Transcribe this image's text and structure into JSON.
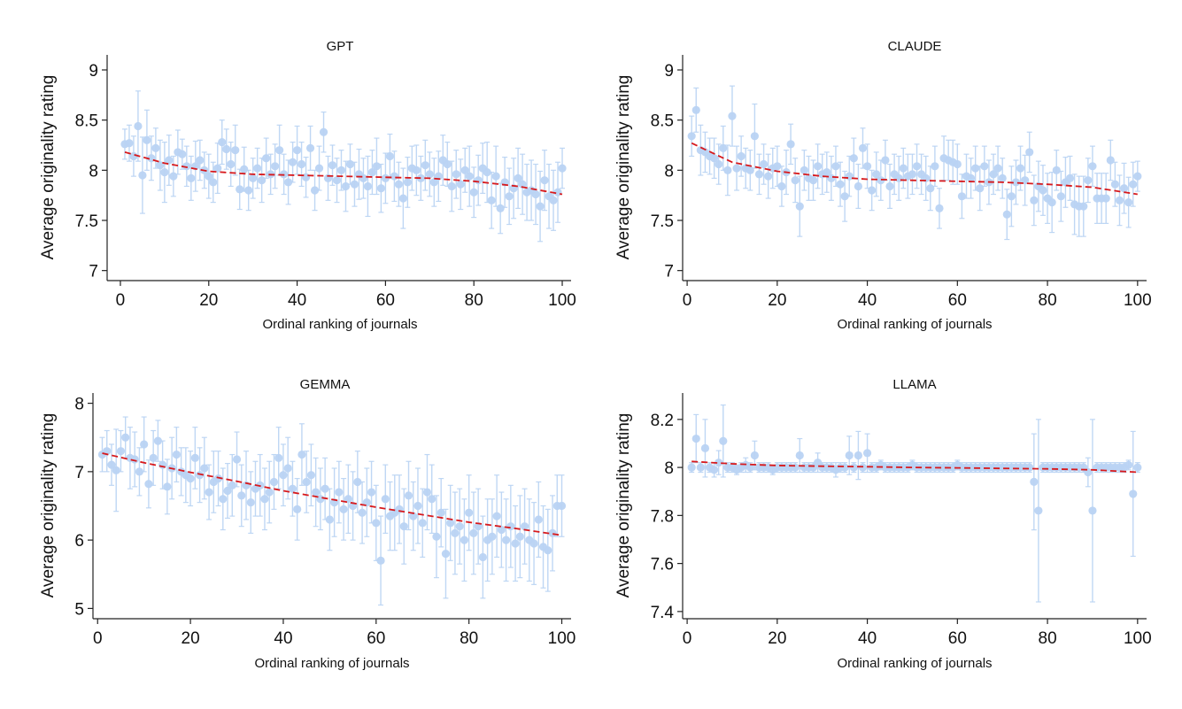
{
  "figure": {
    "x_label": "Ordinal ranking of journals",
    "y_label": "Average originality rating"
  },
  "colors": {
    "points": "#b9d3f3",
    "fit_line": "#d7191c",
    "axis": "#222222"
  },
  "chart_data": [
    {
      "type": "scatter",
      "title": "GPT",
      "xlabel": "Ordinal ranking of journals",
      "ylabel": "Average originality rating",
      "xlim": [
        -3,
        102
      ],
      "ylim": [
        6.9,
        9.15
      ],
      "x_ticks": [
        "0",
        "20",
        "40",
        "60",
        "80",
        "100"
      ],
      "y_ticks": [
        "7",
        "7.5",
        "8",
        "8.5",
        "9"
      ],
      "x": [
        1,
        2,
        3,
        4,
        5,
        6,
        7,
        8,
        9,
        10,
        11,
        12,
        13,
        14,
        15,
        16,
        17,
        18,
        19,
        20,
        21,
        22,
        23,
        24,
        25,
        26,
        27,
        28,
        29,
        30,
        31,
        32,
        33,
        34,
        35,
        36,
        37,
        38,
        39,
        40,
        41,
        42,
        43,
        44,
        45,
        46,
        47,
        48,
        49,
        50,
        51,
        52,
        53,
        54,
        55,
        56,
        57,
        58,
        59,
        60,
        61,
        62,
        63,
        64,
        65,
        66,
        67,
        68,
        69,
        70,
        71,
        72,
        73,
        74,
        75,
        76,
        77,
        78,
        79,
        80,
        81,
        82,
        83,
        84,
        85,
        86,
        87,
        88,
        89,
        90,
        91,
        92,
        93,
        94,
        95,
        96,
        97,
        98,
        99,
        100
      ],
      "y": [
        8.26,
        8.27,
        8.14,
        8.44,
        7.95,
        8.3,
        8.12,
        8.22,
        8.05,
        7.98,
        8.1,
        7.94,
        8.18,
        8.16,
        8.04,
        7.92,
        8.04,
        8.1,
        8.0,
        7.94,
        7.88,
        8.02,
        8.28,
        8.21,
        8.06,
        8.2,
        7.81,
        8.01,
        7.8,
        7.92,
        8.02,
        7.9,
        8.12,
        7.96,
        8.04,
        8.2,
        7.96,
        7.88,
        8.08,
        8.2,
        8.06,
        7.93,
        8.22,
        7.8,
        8.02,
        8.38,
        7.92,
        8.05,
        7.9,
        8.0,
        7.84,
        8.06,
        7.86,
        7.96,
        7.92,
        7.84,
        7.98,
        8.04,
        7.82,
        7.92,
        8.14,
        7.94,
        7.86,
        7.72,
        7.88,
        8.02,
        8.0,
        7.92,
        8.05,
        7.96,
        7.88,
        7.94,
        8.1,
        8.06,
        7.84,
        7.96,
        7.86,
        8.0,
        7.94,
        7.78,
        7.9,
        8.02,
        7.98,
        7.7,
        7.94,
        7.62,
        7.88,
        7.74,
        7.82,
        7.92,
        7.86,
        7.78,
        7.8,
        7.76,
        7.64,
        7.9,
        7.74,
        7.7,
        7.78,
        8.02
      ],
      "error_half_width": [
        0.15,
        0.18,
        0.2,
        0.35,
        0.38,
        0.3,
        0.22,
        0.2,
        0.25,
        0.3,
        0.25,
        0.2,
        0.22,
        0.15,
        0.2,
        0.22,
        0.25,
        0.2,
        0.18,
        0.22,
        0.2,
        0.25,
        0.22,
        0.2,
        0.22,
        0.25,
        0.2,
        0.22,
        0.2,
        0.2,
        0.2,
        0.22,
        0.2,
        0.2,
        0.22,
        0.25,
        0.2,
        0.22,
        0.2,
        0.24,
        0.22,
        0.2,
        0.22,
        0.2,
        0.22,
        0.2,
        0.22,
        0.2,
        0.22,
        0.2,
        0.25,
        0.2,
        0.22,
        0.25,
        0.2,
        0.3,
        0.22,
        0.28,
        0.24,
        0.25,
        0.22,
        0.25,
        0.22,
        0.3,
        0.25,
        0.22,
        0.25,
        0.22,
        0.25,
        0.22,
        0.24,
        0.25,
        0.25,
        0.22,
        0.25,
        0.24,
        0.25,
        0.22,
        0.3,
        0.25,
        0.25,
        0.25,
        0.3,
        0.28,
        0.3,
        0.25,
        0.25,
        0.28,
        0.3,
        0.3,
        0.3,
        0.28,
        0.3,
        0.3,
        0.35,
        0.3,
        0.32,
        0.3,
        0.3,
        0.2
      ],
      "fit_line": {
        "x": [
          1,
          10,
          20,
          30,
          40,
          50,
          60,
          70,
          80,
          90,
          100
        ],
        "y": [
          8.18,
          8.07,
          7.99,
          7.96,
          7.95,
          7.94,
          7.93,
          7.92,
          7.89,
          7.84,
          7.76
        ]
      }
    },
    {
      "type": "scatter",
      "title": "CLAUDE",
      "xlabel": "Ordinal ranking of journals",
      "ylabel": "Average originality rating",
      "xlim": [
        -1,
        102
      ],
      "ylim": [
        6.9,
        9.15
      ],
      "x_ticks": [
        "0",
        "20",
        "40",
        "60",
        "80",
        "100"
      ],
      "y_ticks": [
        "7",
        "7.5",
        "8",
        "8.5",
        "9"
      ],
      "x": [
        1,
        2,
        3,
        4,
        5,
        6,
        7,
        8,
        9,
        10,
        11,
        12,
        13,
        14,
        15,
        16,
        17,
        18,
        19,
        20,
        21,
        22,
        23,
        24,
        25,
        26,
        27,
        28,
        29,
        30,
        31,
        32,
        33,
        34,
        35,
        36,
        37,
        38,
        39,
        40,
        41,
        42,
        43,
        44,
        45,
        46,
        47,
        48,
        49,
        50,
        51,
        52,
        53,
        54,
        55,
        56,
        57,
        58,
        59,
        60,
        61,
        62,
        63,
        64,
        65,
        66,
        67,
        68,
        69,
        70,
        71,
        72,
        73,
        74,
        75,
        76,
        77,
        78,
        79,
        80,
        81,
        82,
        83,
        84,
        85,
        86,
        87,
        88,
        89,
        90,
        91,
        92,
        93,
        94,
        95,
        96,
        97,
        98,
        99,
        100
      ],
      "y": [
        8.34,
        8.6,
        8.2,
        8.18,
        8.14,
        8.12,
        8.06,
        8.22,
        8.0,
        8.54,
        8.02,
        8.14,
        8.02,
        8.0,
        8.34,
        7.96,
        8.06,
        7.94,
        8.02,
        8.04,
        7.84,
        7.98,
        8.26,
        7.9,
        7.64,
        8.0,
        7.92,
        7.9,
        8.04,
        7.96,
        7.98,
        7.92,
        8.04,
        7.86,
        7.74,
        7.94,
        8.12,
        7.84,
        8.22,
        8.04,
        7.8,
        7.96,
        7.9,
        8.1,
        7.84,
        7.96,
        7.92,
        8.02,
        7.94,
        7.96,
        8.04,
        7.96,
        7.92,
        7.82,
        8.04,
        7.62,
        8.12,
        8.1,
        8.08,
        8.06,
        7.74,
        7.94,
        7.92,
        8.02,
        7.82,
        8.04,
        7.88,
        7.96,
        8.02,
        7.92,
        7.56,
        7.74,
        7.88,
        8.02,
        7.9,
        8.18,
        7.7,
        7.84,
        7.8,
        7.72,
        7.68,
        8.0,
        7.74,
        7.88,
        7.92,
        7.66,
        7.64,
        7.64,
        7.9,
        8.04,
        7.72,
        7.72,
        7.72,
        8.1,
        7.86,
        7.7,
        7.82,
        7.68,
        7.86,
        7.94
      ],
      "error_half_width": [
        0.2,
        0.22,
        0.25,
        0.2,
        0.18,
        0.2,
        0.2,
        0.22,
        0.25,
        0.3,
        0.22,
        0.2,
        0.2,
        0.2,
        0.32,
        0.2,
        0.2,
        0.22,
        0.2,
        0.2,
        0.2,
        0.22,
        0.2,
        0.22,
        0.3,
        0.2,
        0.22,
        0.2,
        0.22,
        0.2,
        0.2,
        0.22,
        0.2,
        0.22,
        0.25,
        0.2,
        0.2,
        0.22,
        0.2,
        0.22,
        0.2,
        0.22,
        0.2,
        0.2,
        0.22,
        0.2,
        0.22,
        0.2,
        0.22,
        0.2,
        0.22,
        0.2,
        0.22,
        0.22,
        0.2,
        0.2,
        0.22,
        0.2,
        0.22,
        0.2,
        0.22,
        0.22,
        0.2,
        0.22,
        0.22,
        0.2,
        0.22,
        0.2,
        0.22,
        0.2,
        0.25,
        0.3,
        0.22,
        0.22,
        0.25,
        0.2,
        0.25,
        0.25,
        0.25,
        0.25,
        0.3,
        0.2,
        0.25,
        0.25,
        0.22,
        0.3,
        0.3,
        0.3,
        0.22,
        0.2,
        0.25,
        0.25,
        0.25,
        0.2,
        0.22,
        0.25,
        0.25,
        0.25,
        0.22,
        0.15
      ],
      "fit_line": {
        "x": [
          1,
          10,
          20,
          30,
          40,
          50,
          60,
          70,
          80,
          90,
          100
        ],
        "y": [
          8.27,
          8.08,
          7.99,
          7.94,
          7.91,
          7.9,
          7.89,
          7.88,
          7.86,
          7.83,
          7.76
        ]
      }
    },
    {
      "type": "scatter",
      "title": "GEMMA",
      "xlabel": "Ordinal ranking of journals",
      "ylabel": "Average originality rating",
      "xlim": [
        -1,
        102
      ],
      "ylim": [
        4.85,
        8.15
      ],
      "x_ticks": [
        "0",
        "20",
        "40",
        "60",
        "80",
        "100"
      ],
      "y_ticks": [
        "5",
        "6",
        "7",
        "8"
      ],
      "x": [
        1,
        2,
        3,
        4,
        5,
        6,
        7,
        8,
        9,
        10,
        11,
        12,
        13,
        14,
        15,
        16,
        17,
        18,
        19,
        20,
        21,
        22,
        23,
        24,
        25,
        26,
        27,
        28,
        29,
        30,
        31,
        32,
        33,
        34,
        35,
        36,
        37,
        38,
        39,
        40,
        41,
        42,
        43,
        44,
        45,
        46,
        47,
        48,
        49,
        50,
        51,
        52,
        53,
        54,
        55,
        56,
        57,
        58,
        59,
        60,
        61,
        62,
        63,
        64,
        65,
        66,
        67,
        68,
        69,
        70,
        71,
        72,
        73,
        74,
        75,
        76,
        77,
        78,
        79,
        80,
        81,
        82,
        83,
        84,
        85,
        86,
        87,
        88,
        89,
        90,
        91,
        92,
        93,
        94,
        95,
        96,
        97,
        98,
        99,
        100
      ],
      "y": [
        7.25,
        7.3,
        7.1,
        7.02,
        7.3,
        7.5,
        7.2,
        7.18,
        7.0,
        7.4,
        6.82,
        7.2,
        7.45,
        7.1,
        6.78,
        7.05,
        7.25,
        7.0,
        6.95,
        6.9,
        7.2,
        6.95,
        7.05,
        6.7,
        6.85,
        6.9,
        6.6,
        6.72,
        6.8,
        7.18,
        6.65,
        6.8,
        6.55,
        6.75,
        6.8,
        6.6,
        6.7,
        6.85,
        7.2,
        6.95,
        7.05,
        6.75,
        6.45,
        7.25,
        6.85,
        6.95,
        6.7,
        6.6,
        6.75,
        6.3,
        6.55,
        6.7,
        6.45,
        6.6,
        6.5,
        6.85,
        6.4,
        6.55,
        6.7,
        6.25,
        5.7,
        6.6,
        6.35,
        6.4,
        6.45,
        6.2,
        6.65,
        6.35,
        6.5,
        6.25,
        6.7,
        6.6,
        6.05,
        6.4,
        5.8,
        6.25,
        6.1,
        6.2,
        6.0,
        6.4,
        6.1,
        6.2,
        5.75,
        6.0,
        6.05,
        6.35,
        6.15,
        6.0,
        6.2,
        5.95,
        6.05,
        6.2,
        6.0,
        5.95,
        6.3,
        5.9,
        5.85,
        6.1,
        6.5,
        6.5
      ],
      "error_half_width": [
        0.25,
        0.3,
        0.3,
        0.6,
        0.3,
        0.3,
        0.45,
        0.4,
        0.35,
        0.4,
        0.35,
        0.4,
        0.3,
        0.35,
        0.4,
        0.45,
        0.4,
        0.35,
        0.4,
        0.4,
        0.45,
        0.4,
        0.45,
        0.4,
        0.45,
        0.4,
        0.45,
        0.4,
        0.45,
        0.4,
        0.45,
        0.5,
        0.45,
        0.4,
        0.45,
        0.45,
        0.45,
        0.4,
        0.45,
        0.45,
        0.45,
        0.4,
        0.45,
        0.45,
        0.45,
        0.45,
        0.5,
        0.45,
        0.45,
        0.45,
        0.5,
        0.45,
        0.45,
        0.5,
        0.5,
        0.45,
        0.45,
        0.5,
        0.45,
        0.55,
        0.65,
        0.5,
        0.5,
        0.55,
        0.5,
        0.55,
        0.5,
        0.5,
        0.55,
        0.5,
        0.55,
        0.5,
        0.6,
        0.5,
        0.65,
        0.55,
        0.6,
        0.55,
        0.6,
        0.55,
        0.6,
        0.55,
        0.6,
        0.6,
        0.55,
        0.6,
        0.55,
        0.6,
        0.6,
        0.55,
        0.6,
        0.55,
        0.6,
        0.6,
        0.55,
        0.6,
        0.6,
        0.55,
        0.45,
        0.45
      ],
      "fit_line": {
        "x": [
          1,
          10,
          20,
          30,
          40,
          50,
          60,
          70,
          80,
          90,
          100
        ],
        "y": [
          7.27,
          7.13,
          6.99,
          6.86,
          6.72,
          6.6,
          6.48,
          6.37,
          6.26,
          6.17,
          6.07
        ]
      }
    },
    {
      "type": "scatter",
      "title": "LLAMA",
      "xlabel": "Ordinal ranking of journals",
      "ylabel": "Average originality rating",
      "xlim": [
        -1,
        102
      ],
      "ylim": [
        7.37,
        8.31
      ],
      "x_ticks": [
        "0",
        "20",
        "40",
        "60",
        "80",
        "100"
      ],
      "y_ticks": [
        "7.4",
        "7.6",
        "7.8",
        "8",
        "8.2"
      ],
      "x": [
        1,
        2,
        3,
        4,
        5,
        6,
        7,
        8,
        9,
        10,
        11,
        12,
        13,
        14,
        15,
        16,
        17,
        18,
        19,
        20,
        21,
        22,
        23,
        24,
        25,
        26,
        27,
        28,
        29,
        30,
        31,
        32,
        33,
        34,
        35,
        36,
        37,
        38,
        39,
        40,
        41,
        42,
        43,
        44,
        45,
        46,
        47,
        48,
        49,
        50,
        51,
        52,
        53,
        54,
        55,
        56,
        57,
        58,
        59,
        60,
        61,
        62,
        63,
        64,
        65,
        66,
        67,
        68,
        69,
        70,
        71,
        72,
        73,
        74,
        75,
        76,
        77,
        78,
        79,
        80,
        81,
        82,
        83,
        84,
        85,
        86,
        87,
        88,
        89,
        90,
        91,
        92,
        93,
        94,
        95,
        96,
        97,
        98,
        99,
        100
      ],
      "y": [
        8.0,
        8.12,
        8.0,
        8.08,
        8.0,
        7.99,
        8.02,
        8.11,
        8.0,
        8.0,
        7.99,
        8.0,
        8.01,
        8.0,
        8.05,
        8.0,
        8.0,
        8.0,
        7.99,
        8.0,
        8.0,
        8.0,
        8.0,
        8.0,
        8.05,
        8.0,
        8.0,
        8.0,
        8.02,
        8.0,
        8.0,
        8.0,
        7.99,
        8.0,
        8.0,
        8.05,
        8.0,
        8.05,
        8.0,
        8.06,
        8.0,
        8.0,
        8.01,
        8.0,
        8.0,
        8.0,
        8.0,
        8.0,
        8.0,
        8.01,
        8.0,
        8.0,
        8.0,
        8.0,
        8.0,
        8.0,
        8.0,
        8.0,
        8.0,
        8.01,
        8.0,
        8.0,
        8.0,
        8.0,
        8.0,
        8.0,
        8.0,
        8.0,
        8.0,
        8.0,
        8.0,
        8.0,
        8.0,
        8.0,
        8.0,
        8.0,
        7.94,
        7.82,
        8.0,
        8.0,
        8.0,
        8.0,
        8.0,
        8.0,
        8.0,
        8.0,
        8.0,
        8.0,
        7.98,
        7.82,
        8.0,
        8.0,
        8.0,
        8.0,
        8.0,
        8.0,
        8.0,
        8.01,
        7.89,
        8.0
      ],
      "error_half_width": [
        0.02,
        0.1,
        0.02,
        0.12,
        0.02,
        0.03,
        0.05,
        0.15,
        0.02,
        0.02,
        0.02,
        0.02,
        0.03,
        0.02,
        0.06,
        0.02,
        0.02,
        0.02,
        0.02,
        0.02,
        0.02,
        0.02,
        0.02,
        0.02,
        0.07,
        0.02,
        0.02,
        0.02,
        0.04,
        0.02,
        0.02,
        0.02,
        0.03,
        0.02,
        0.02,
        0.08,
        0.02,
        0.1,
        0.02,
        0.08,
        0.02,
        0.02,
        0.02,
        0.02,
        0.02,
        0.02,
        0.02,
        0.02,
        0.02,
        0.02,
        0.02,
        0.02,
        0.02,
        0.02,
        0.02,
        0.02,
        0.02,
        0.02,
        0.02,
        0.02,
        0.02,
        0.02,
        0.02,
        0.02,
        0.02,
        0.02,
        0.02,
        0.02,
        0.02,
        0.02,
        0.02,
        0.02,
        0.02,
        0.02,
        0.02,
        0.02,
        0.2,
        0.38,
        0.02,
        0.02,
        0.02,
        0.02,
        0.02,
        0.02,
        0.02,
        0.02,
        0.02,
        0.02,
        0.06,
        0.38,
        0.02,
        0.02,
        0.02,
        0.02,
        0.02,
        0.02,
        0.02,
        0.02,
        0.26,
        0.02
      ],
      "fit_line": {
        "x": [
          1,
          10,
          20,
          30,
          40,
          50,
          60,
          70,
          80,
          90,
          100
        ],
        "y": [
          8.025,
          8.015,
          8.008,
          8.005,
          8.003,
          8.0,
          7.998,
          7.996,
          7.994,
          7.99,
          7.98
        ]
      }
    }
  ]
}
